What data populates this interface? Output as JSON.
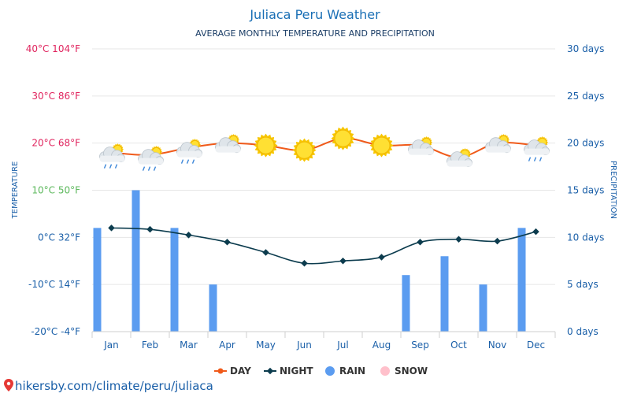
{
  "chart_data": {
    "type": "line+bar",
    "title": "Juliaca Peru Weather",
    "subtitle": "AVERAGE MONTHLY TEMPERATURE AND PRECIPITATION",
    "left_axis_label": "TEMPERATURE",
    "right_axis_label": "PRECIPITATION",
    "categories": [
      "Jan",
      "Feb",
      "Mar",
      "Apr",
      "May",
      "Jun",
      "Jul",
      "Aug",
      "Sep",
      "Oct",
      "Nov",
      "Dec"
    ],
    "y_left_ticks": [
      {
        "value": 40,
        "label": "40°C 104°F",
        "color": "#e0245e"
      },
      {
        "value": 30,
        "label": "30°C 86°F",
        "color": "#e0245e"
      },
      {
        "value": 20,
        "label": "20°C 68°F",
        "color": "#e0245e"
      },
      {
        "value": 10,
        "label": "10°C 50°F",
        "color": "#5cb85c"
      },
      {
        "value": 0,
        "label": "0°C 32°F",
        "color": "#1a5fa8"
      },
      {
        "value": -10,
        "label": "-10°C 14°F",
        "color": "#1a5fa8"
      },
      {
        "value": -20,
        "label": "-20°C -4°F",
        "color": "#1a5fa8"
      }
    ],
    "y_left_range": [
      -20,
      40
    ],
    "y_right_ticks": [
      {
        "value": 30,
        "label": "30 days"
      },
      {
        "value": 25,
        "label": "25 days"
      },
      {
        "value": 20,
        "label": "20 days"
      },
      {
        "value": 15,
        "label": "15 days"
      },
      {
        "value": 10,
        "label": "10 days"
      },
      {
        "value": 5,
        "label": "5 days"
      },
      {
        "value": 0,
        "label": "0 days"
      }
    ],
    "y_right_range": [
      0,
      30
    ],
    "series": [
      {
        "name": "DAY",
        "kind": "line",
        "color": "#f05a1a",
        "values": [
          18,
          17.5,
          19,
          20,
          19.5,
          18.5,
          21,
          19.5,
          19.5,
          17,
          20,
          19.5
        ]
      },
      {
        "name": "NIGHT",
        "kind": "line",
        "color": "#0c3c4e",
        "values": [
          2,
          1.7,
          0.5,
          -1,
          -3.2,
          -5.5,
          -5,
          -4.2,
          -1,
          -0.4,
          -0.8,
          1.2
        ]
      },
      {
        "name": "RAIN",
        "kind": "bar",
        "color": "#5b9cf0",
        "values": [
          11,
          15,
          11,
          5,
          0,
          0,
          0,
          0,
          6,
          8,
          5,
          11
        ]
      },
      {
        "name": "SNOW",
        "kind": "bar",
        "color": "#ffc0cb",
        "values": [
          0,
          0,
          0,
          0,
          0,
          0,
          0,
          0,
          0,
          0,
          0,
          0
        ]
      }
    ],
    "weather_icons": [
      "sun-cloud-rain",
      "sun-cloud-rain",
      "sun-cloud-rain",
      "sun-cloud",
      "sun",
      "sun",
      "sun",
      "sun",
      "sun-cloud",
      "sun-cloud",
      "sun-cloud",
      "sun-cloud-rain"
    ],
    "legend": {
      "position": "bottom",
      "items": [
        "DAY",
        "NIGHT",
        "RAIN",
        "SNOW"
      ]
    },
    "grid": true
  },
  "footer": {
    "url_text": "hikersby.com/climate/peru/juliaca"
  },
  "colors": {
    "title": "#1a6fb5",
    "axis_text": "#1a5fa8",
    "grid": "#e6e6e6",
    "footer": "#1a5fa8",
    "footer_icon": "#e53935"
  }
}
